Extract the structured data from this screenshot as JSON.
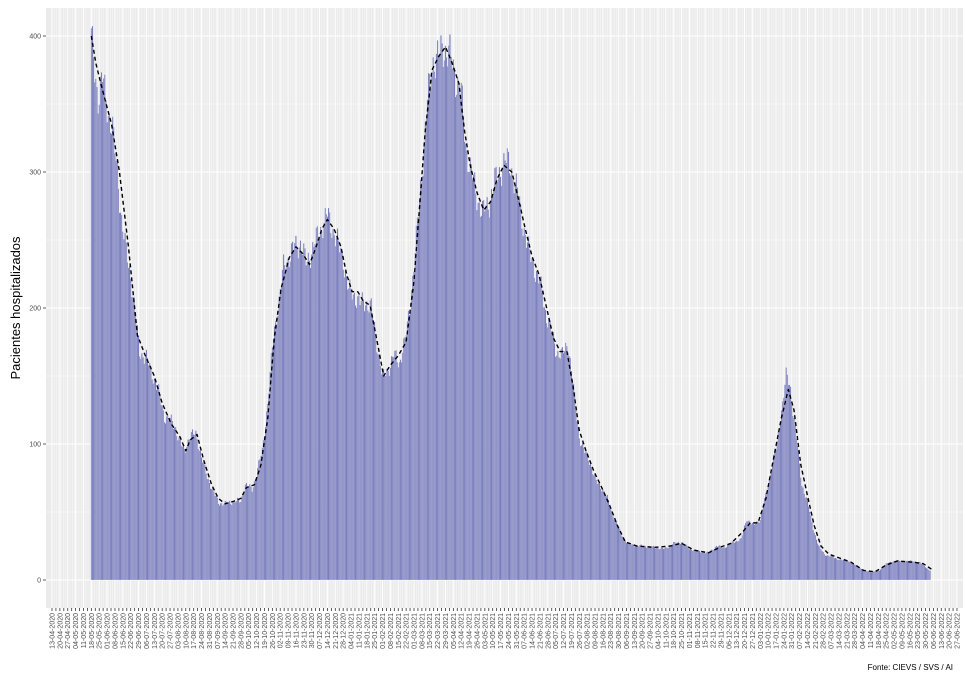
{
  "chart_data": {
    "type": "bar",
    "title": "",
    "xlabel": "",
    "ylabel": "Pacientes hospitalizados",
    "caption": "Fonte: CIEVS / SVS / AI",
    "xlim": [
      "2020-04-13",
      "2022-06-27"
    ],
    "ylim": [
      0,
      420
    ],
    "y_ticks": [
      0,
      100,
      200,
      300,
      400
    ],
    "x_tick_labels": [
      "13-04-2020",
      "20-04-2020",
      "27-04-2020",
      "04-05-2020",
      "11-05-2020",
      "18-05-2020",
      "25-05-2020",
      "01-06-2020",
      "08-06-2020",
      "15-06-2020",
      "22-06-2020",
      "29-06-2020",
      "06-07-2020",
      "13-07-2020",
      "20-07-2020",
      "27-07-2020",
      "03-08-2020",
      "10-08-2020",
      "17-08-2020",
      "24-08-2020",
      "31-08-2020",
      "07-09-2020",
      "14-09-2020",
      "21-09-2020",
      "28-09-2020",
      "05-10-2020",
      "12-10-2020",
      "19-10-2020",
      "26-10-2020",
      "02-11-2020",
      "09-11-2020",
      "16-11-2020",
      "23-11-2020",
      "30-11-2020",
      "07-12-2020",
      "14-12-2020",
      "21-12-2020",
      "28-12-2020",
      "04-01-2021",
      "11-01-2021",
      "18-01-2021",
      "25-01-2021",
      "01-02-2021",
      "08-02-2021",
      "15-02-2021",
      "22-02-2021",
      "01-03-2021",
      "08-03-2021",
      "15-03-2021",
      "22-03-2021",
      "29-03-2021",
      "05-04-2021",
      "12-04-2021",
      "19-04-2021",
      "26-04-2021",
      "03-05-2021",
      "10-05-2021",
      "17-05-2021",
      "24-05-2021",
      "31-05-2021",
      "07-06-2021",
      "14-06-2021",
      "21-06-2021",
      "28-06-2021",
      "05-07-2021",
      "12-07-2021",
      "19-07-2021",
      "26-07-2021",
      "02-08-2021",
      "09-08-2021",
      "16-08-2021",
      "23-08-2021",
      "30-08-2021",
      "06-09-2021",
      "13-09-2021",
      "20-09-2021",
      "27-09-2021",
      "04-10-2021",
      "11-10-2021",
      "18-10-2021",
      "25-10-2021",
      "01-11-2021",
      "08-11-2021",
      "15-11-2021",
      "22-11-2021",
      "29-11-2021",
      "06-12-2021",
      "13-12-2021",
      "20-12-2021",
      "27-12-2021",
      "03-01-2022",
      "10-01-2022",
      "17-01-2022",
      "24-01-2022",
      "31-01-2022",
      "07-02-2022",
      "14-02-2022",
      "21-02-2022",
      "28-02-2022",
      "07-03-2022",
      "14-03-2022",
      "21-03-2022",
      "28-03-2022",
      "04-04-2022",
      "11-04-2022",
      "18-04-2022",
      "25-04-2022",
      "02-05-2022",
      "09-05-2022",
      "16-05-2022",
      "23-05-2022",
      "30-05-2022",
      "06-06-2022",
      "13-06-2022",
      "20-06-2022",
      "27-06-2022"
    ],
    "daily_series": {
      "name": "",
      "style": "bar",
      "date_range": [
        "2020-05-18",
        "2022-06-03"
      ],
      "anchors": [
        [
          "2020-05-18",
          398
        ],
        [
          "2020-05-21",
          375
        ],
        [
          "2020-05-24",
          356
        ],
        [
          "2020-05-28",
          368
        ],
        [
          "2020-06-02",
          345
        ],
        [
          "2020-06-06",
          330
        ],
        [
          "2020-06-10",
          300
        ],
        [
          "2020-06-14",
          265
        ],
        [
          "2020-06-18",
          240
        ],
        [
          "2020-06-22",
          225
        ],
        [
          "2020-06-26",
          195
        ],
        [
          "2020-06-30",
          168
        ],
        [
          "2020-07-06",
          163
        ],
        [
          "2020-07-12",
          150
        ],
        [
          "2020-07-17",
          138
        ],
        [
          "2020-07-22",
          120
        ],
        [
          "2020-07-27",
          118
        ],
        [
          "2020-08-01",
          112
        ],
        [
          "2020-08-05",
          100
        ],
        [
          "2020-08-09",
          95
        ],
        [
          "2020-08-13",
          105
        ],
        [
          "2020-08-19",
          108
        ],
        [
          "2020-08-24",
          90
        ],
        [
          "2020-08-29",
          76
        ],
        [
          "2020-09-03",
          66
        ],
        [
          "2020-09-08",
          57
        ],
        [
          "2020-09-14",
          56
        ],
        [
          "2020-09-21",
          58
        ],
        [
          "2020-09-28",
          58
        ],
        [
          "2020-10-02",
          70
        ],
        [
          "2020-10-08",
          67
        ],
        [
          "2020-10-12",
          78
        ],
        [
          "2020-10-17",
          95
        ],
        [
          "2020-10-22",
          130
        ],
        [
          "2020-10-27",
          180
        ],
        [
          "2020-11-01",
          205
        ],
        [
          "2020-11-05",
          230
        ],
        [
          "2020-11-10",
          238
        ],
        [
          "2020-11-15",
          245
        ],
        [
          "2020-11-20",
          248
        ],
        [
          "2020-11-25",
          233
        ],
        [
          "2020-11-30",
          242
        ],
        [
          "2020-12-05",
          252
        ],
        [
          "2020-12-10",
          262
        ],
        [
          "2020-12-14",
          268
        ],
        [
          "2020-12-18",
          260
        ],
        [
          "2020-12-23",
          248
        ],
        [
          "2020-12-28",
          236
        ],
        [
          "2021-01-02",
          212
        ],
        [
          "2021-01-07",
          210
        ],
        [
          "2021-01-12",
          203
        ],
        [
          "2021-01-17",
          205
        ],
        [
          "2021-01-22",
          200
        ],
        [
          "2021-01-27",
          175
        ],
        [
          "2021-02-01",
          148
        ],
        [
          "2021-02-06",
          155
        ],
        [
          "2021-02-11",
          165
        ],
        [
          "2021-02-16",
          160
        ],
        [
          "2021-02-21",
          175
        ],
        [
          "2021-02-26",
          205
        ],
        [
          "2021-03-03",
          250
        ],
        [
          "2021-03-08",
          300
        ],
        [
          "2021-03-13",
          352
        ],
        [
          "2021-03-18",
          382
        ],
        [
          "2021-03-23",
          385
        ],
        [
          "2021-03-28",
          392
        ],
        [
          "2021-04-02",
          385
        ],
        [
          "2021-04-07",
          370
        ],
        [
          "2021-04-12",
          358
        ],
        [
          "2021-04-16",
          320
        ],
        [
          "2021-04-21",
          300
        ],
        [
          "2021-04-26",
          282
        ],
        [
          "2021-05-01",
          270
        ],
        [
          "2021-05-06",
          276
        ],
        [
          "2021-05-11",
          290
        ],
        [
          "2021-05-16",
          300
        ],
        [
          "2021-05-21",
          308
        ],
        [
          "2021-05-26",
          305
        ],
        [
          "2021-06-01",
          285
        ],
        [
          "2021-06-06",
          262
        ],
        [
          "2021-06-11",
          242
        ],
        [
          "2021-06-16",
          230
        ],
        [
          "2021-06-21",
          218
        ],
        [
          "2021-06-26",
          198
        ],
        [
          "2021-07-01",
          182
        ],
        [
          "2021-07-06",
          168
        ],
        [
          "2021-07-11",
          165
        ],
        [
          "2021-07-16",
          175
        ],
        [
          "2021-07-21",
          140
        ],
        [
          "2021-07-26",
          105
        ],
        [
          "2021-07-31",
          94
        ],
        [
          "2021-08-05",
          86
        ],
        [
          "2021-08-10",
          72
        ],
        [
          "2021-08-15",
          68
        ],
        [
          "2021-08-20",
          60
        ],
        [
          "2021-08-25",
          48
        ],
        [
          "2021-08-30",
          38
        ],
        [
          "2021-09-04",
          30
        ],
        [
          "2021-09-09",
          26
        ],
        [
          "2021-09-20",
          25
        ],
        [
          "2021-10-01",
          24
        ],
        [
          "2021-10-10",
          23
        ],
        [
          "2021-10-18",
          27
        ],
        [
          "2021-10-25",
          28
        ],
        [
          "2021-11-01",
          23
        ],
        [
          "2021-11-10",
          21
        ],
        [
          "2021-11-18",
          20
        ],
        [
          "2021-11-25",
          25
        ],
        [
          "2021-12-02",
          24
        ],
        [
          "2021-12-10",
          28
        ],
        [
          "2021-12-17",
          30
        ],
        [
          "2021-12-22",
          45
        ],
        [
          "2021-12-28",
          40
        ],
        [
          "2022-01-03",
          45
        ],
        [
          "2022-01-08",
          62
        ],
        [
          "2022-01-13",
          82
        ],
        [
          "2022-01-18",
          100
        ],
        [
          "2022-01-22",
          125
        ],
        [
          "2022-01-26",
          150
        ],
        [
          "2022-01-30",
          140
        ],
        [
          "2022-02-04",
          105
        ],
        [
          "2022-02-09",
          70
        ],
        [
          "2022-02-14",
          58
        ],
        [
          "2022-02-19",
          38
        ],
        [
          "2022-02-24",
          25
        ],
        [
          "2022-03-01",
          19
        ],
        [
          "2022-03-08",
          17
        ],
        [
          "2022-03-15",
          15
        ],
        [
          "2022-03-22",
          14
        ],
        [
          "2022-03-29",
          11
        ],
        [
          "2022-04-05",
          7
        ],
        [
          "2022-04-12",
          6
        ],
        [
          "2022-04-19",
          7
        ],
        [
          "2022-04-25",
          12
        ],
        [
          "2022-05-02",
          14
        ],
        [
          "2022-05-10",
          14
        ],
        [
          "2022-05-18",
          14
        ],
        [
          "2022-05-25",
          13
        ],
        [
          "2022-06-03",
          7
        ]
      ]
    },
    "trend_series": {
      "name": "",
      "style": "dashed-line",
      "points": [
        [
          "2020-05-18",
          400
        ],
        [
          "2020-05-22",
          380
        ],
        [
          "2020-05-28",
          360
        ],
        [
          "2020-06-05",
          335
        ],
        [
          "2020-06-12",
          300
        ],
        [
          "2020-06-20",
          245
        ],
        [
          "2020-06-28",
          180
        ],
        [
          "2020-07-05",
          165
        ],
        [
          "2020-07-13",
          150
        ],
        [
          "2020-07-20",
          130
        ],
        [
          "2020-07-28",
          115
        ],
        [
          "2020-08-05",
          105
        ],
        [
          "2020-08-10",
          95
        ],
        [
          "2020-08-14",
          103
        ],
        [
          "2020-08-20",
          107
        ],
        [
          "2020-08-26",
          88
        ],
        [
          "2020-09-02",
          70
        ],
        [
          "2020-09-08",
          60
        ],
        [
          "2020-09-14",
          56
        ],
        [
          "2020-09-22",
          58
        ],
        [
          "2020-09-28",
          60
        ],
        [
          "2020-10-03",
          68
        ],
        [
          "2020-10-10",
          70
        ],
        [
          "2020-10-16",
          85
        ],
        [
          "2020-10-22",
          120
        ],
        [
          "2020-10-28",
          180
        ],
        [
          "2020-11-03",
          215
        ],
        [
          "2020-11-10",
          237
        ],
        [
          "2020-11-16",
          245
        ],
        [
          "2020-11-22",
          240
        ],
        [
          "2020-11-28",
          232
        ],
        [
          "2020-12-04",
          245
        ],
        [
          "2020-12-09",
          258
        ],
        [
          "2020-12-14",
          265
        ],
        [
          "2020-12-20",
          258
        ],
        [
          "2020-12-26",
          245
        ],
        [
          "2020-12-31",
          225
        ],
        [
          "2021-01-05",
          212
        ],
        [
          "2021-01-10",
          212
        ],
        [
          "2021-01-15",
          205
        ],
        [
          "2021-01-21",
          202
        ],
        [
          "2021-01-28",
          172
        ],
        [
          "2021-02-02",
          150
        ],
        [
          "2021-02-08",
          158
        ],
        [
          "2021-02-15",
          165
        ],
        [
          "2021-02-22",
          175
        ],
        [
          "2021-03-01",
          220
        ],
        [
          "2021-03-06",
          275
        ],
        [
          "2021-03-11",
          330
        ],
        [
          "2021-03-17",
          375
        ],
        [
          "2021-03-23",
          385
        ],
        [
          "2021-03-29",
          392
        ],
        [
          "2021-04-04",
          380
        ],
        [
          "2021-04-10",
          365
        ],
        [
          "2021-04-15",
          330
        ],
        [
          "2021-04-20",
          305
        ],
        [
          "2021-04-26",
          285
        ],
        [
          "2021-05-02",
          272
        ],
        [
          "2021-05-08",
          278
        ],
        [
          "2021-05-14",
          295
        ],
        [
          "2021-05-20",
          305
        ],
        [
          "2021-05-27",
          300
        ],
        [
          "2021-06-02",
          280
        ],
        [
          "2021-06-08",
          258
        ],
        [
          "2021-06-14",
          238
        ],
        [
          "2021-06-20",
          225
        ],
        [
          "2021-06-27",
          200
        ],
        [
          "2021-07-03",
          178
        ],
        [
          "2021-07-09",
          168
        ],
        [
          "2021-07-15",
          168
        ],
        [
          "2021-07-20",
          145
        ],
        [
          "2021-07-26",
          110
        ],
        [
          "2021-08-01",
          95
        ],
        [
          "2021-08-08",
          80
        ],
        [
          "2021-08-15",
          68
        ],
        [
          "2021-08-22",
          55
        ],
        [
          "2021-08-29",
          40
        ],
        [
          "2021-09-05",
          28
        ],
        [
          "2021-09-15",
          25
        ],
        [
          "2021-10-01",
          24
        ],
        [
          "2021-10-15",
          25
        ],
        [
          "2021-10-25",
          27
        ],
        [
          "2021-11-05",
          22
        ],
        [
          "2021-11-18",
          20
        ],
        [
          "2021-11-28",
          24
        ],
        [
          "2021-12-08",
          27
        ],
        [
          "2021-12-18",
          35
        ],
        [
          "2021-12-25",
          42
        ],
        [
          "2022-01-01",
          42
        ],
        [
          "2022-01-08",
          60
        ],
        [
          "2022-01-15",
          90
        ],
        [
          "2022-01-22",
          120
        ],
        [
          "2022-01-28",
          140
        ],
        [
          "2022-02-02",
          125
        ],
        [
          "2022-02-08",
          85
        ],
        [
          "2022-02-14",
          62
        ],
        [
          "2022-02-20",
          40
        ],
        [
          "2022-02-26",
          25
        ],
        [
          "2022-03-05",
          19
        ],
        [
          "2022-03-15",
          16
        ],
        [
          "2022-03-25",
          13
        ],
        [
          "2022-04-05",
          7
        ],
        [
          "2022-04-15",
          6
        ],
        [
          "2022-04-25",
          11
        ],
        [
          "2022-05-05",
          14
        ],
        [
          "2022-05-20",
          13
        ],
        [
          "2022-05-28",
          12
        ],
        [
          "2022-06-06",
          7
        ]
      ]
    },
    "grid": true,
    "legend": "none",
    "colors": {
      "panel_bg": "#ebebeb",
      "grid": "#ffffff",
      "bar_fill": "#6a6fb5",
      "bar_edge": "#e8e8f2",
      "trend_line": "#000000",
      "tick_text": "#4d4d4d"
    }
  }
}
